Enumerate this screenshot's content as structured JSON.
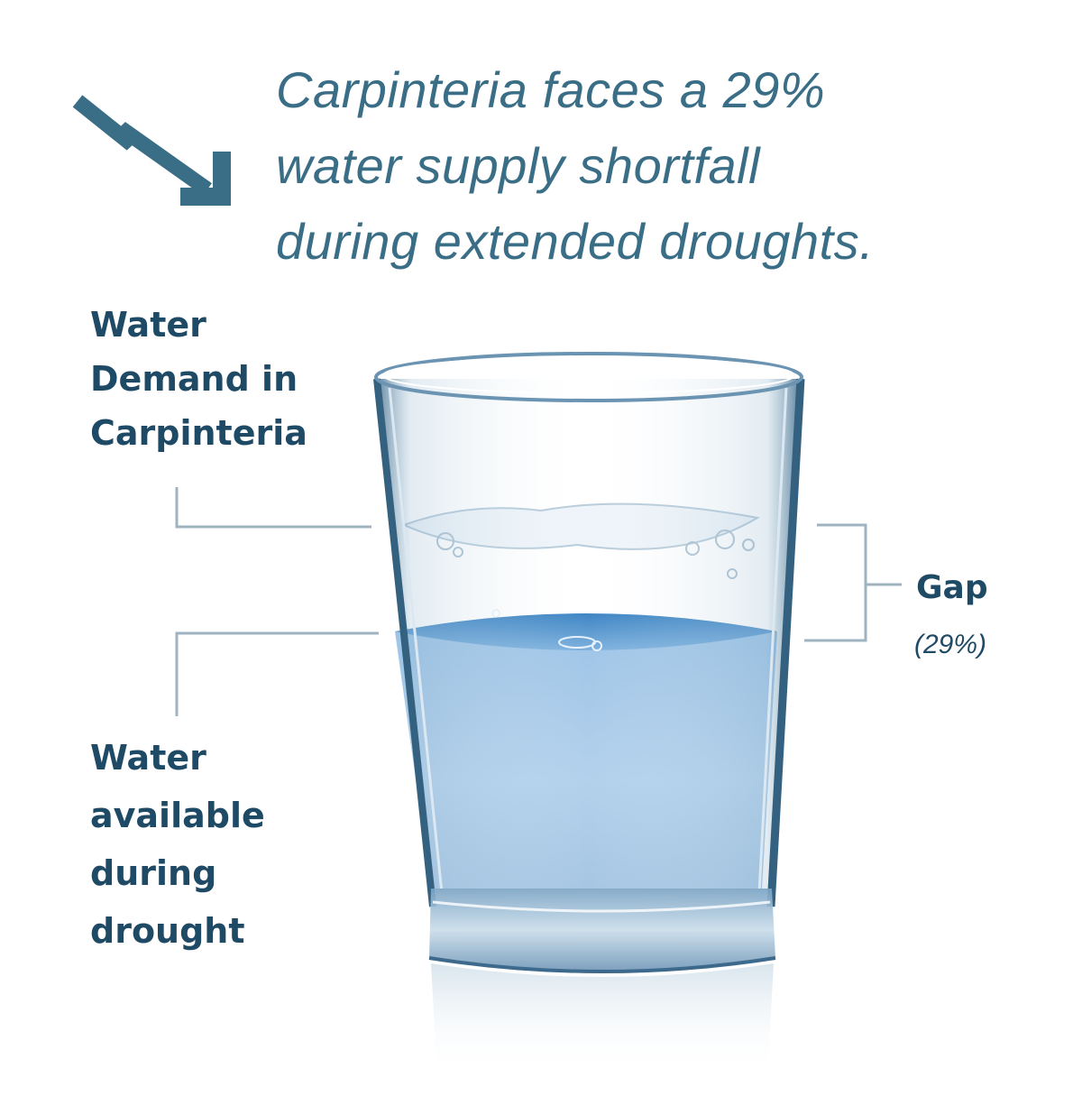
{
  "headline": {
    "lines": [
      "Carpinteria faces a 29%",
      "water supply shortfall",
      "during extended droughts."
    ]
  },
  "labels": {
    "demand": [
      "Water",
      "Demand in",
      "Carpinteria"
    ],
    "available": [
      "Water",
      "available",
      "during",
      "drought"
    ],
    "gap": "Gap",
    "gap_percent": "(29%)"
  },
  "gap_fraction": 0.29,
  "colors": {
    "headline": "#3a6d86",
    "label": "#1f4a66",
    "leader_lines": "#9fb4c0",
    "water": "#a9cbe8",
    "water_surface": "#4f8fc4",
    "glass_edge": "#5f89a8"
  },
  "icons": {
    "trend": "trend-down-arrow-icon",
    "glass": "water-glass-icon"
  }
}
